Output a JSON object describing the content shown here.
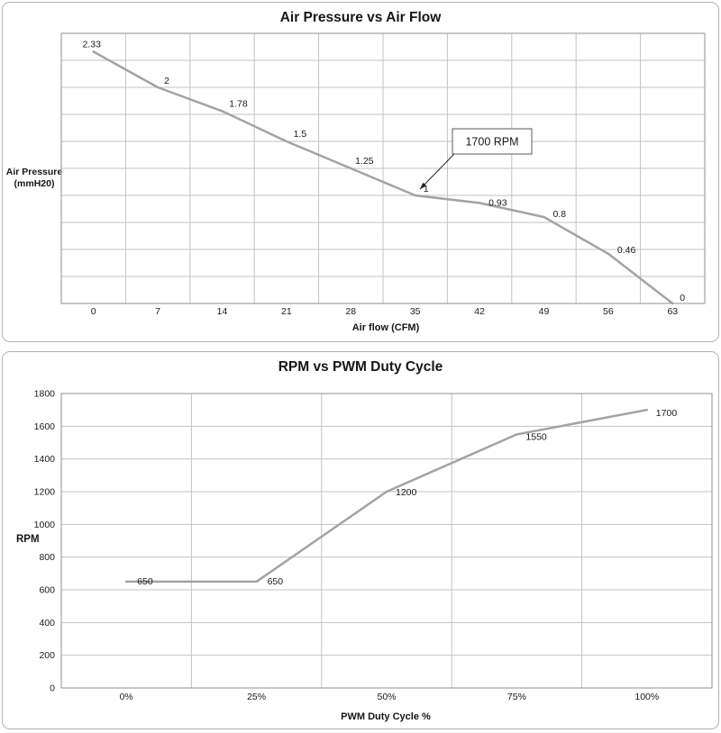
{
  "colors": {
    "line": "#a3a3a3",
    "grid": "#c3c3c3",
    "plot_border": "#8f8f8f",
    "text": "#1a1a1a",
    "annotation_border": "#595959",
    "annotation_fill": "#ffffff",
    "arrow": "#262626"
  },
  "chart_data": [
    {
      "type": "line",
      "title": "Air Pressure vs Air Flow",
      "xlabel": "Air flow (CFM)",
      "ylabel_lines": [
        "Air Pressure",
        "(mmH20)"
      ],
      "categories": [
        "0",
        "7",
        "14",
        "21",
        "28",
        "35",
        "42",
        "49",
        "56",
        "63"
      ],
      "values": [
        2.33,
        2,
        1.78,
        1.5,
        1.25,
        1,
        0.93,
        0.8,
        0.46,
        0
      ],
      "point_labels": [
        "2.33",
        "2",
        "1.78",
        "1.5",
        "1.25",
        "1",
        "0.93",
        "0.8",
        "0.46",
        "0"
      ],
      "label_hints": [
        [
          -2,
          -5,
          "middle"
        ],
        [
          10,
          -4,
          "middle"
        ],
        [
          18,
          -5,
          "middle"
        ],
        [
          15,
          -5,
          "middle"
        ],
        [
          15,
          -5,
          "middle"
        ],
        [
          12,
          -4,
          "middle"
        ],
        [
          10,
          3,
          "start"
        ],
        [
          10,
          0,
          "start"
        ],
        [
          10,
          -1,
          "start"
        ],
        [
          8,
          -3,
          "start"
        ]
      ],
      "ylim": [
        0,
        2.5
      ],
      "y_step": 0.25,
      "show_y_tick_labels": false,
      "grid": true,
      "legend": "none",
      "annotation": {
        "text": "1700 RPM",
        "target_category": "35",
        "target_value": 1,
        "target_index": 5
      }
    },
    {
      "type": "line",
      "title": "RPM vs PWM Duty Cycle",
      "xlabel": "PWM Duty Cycle %",
      "ylabel_lines": [
        "RPM"
      ],
      "categories": [
        "0%",
        "25%",
        "50%",
        "75%",
        "100%"
      ],
      "values": [
        650,
        650,
        1200,
        1550,
        1700
      ],
      "point_labels": [
        "650",
        "650",
        "1200",
        "1550",
        "1700"
      ],
      "label_hints": [
        [
          12,
          3,
          "start"
        ],
        [
          12,
          3,
          "start"
        ],
        [
          10,
          4,
          "start"
        ],
        [
          10,
          6,
          "start"
        ],
        [
          10,
          7,
          "start"
        ]
      ],
      "ylim": [
        0,
        1800
      ],
      "y_step": 200,
      "show_y_tick_labels": true,
      "grid": true,
      "legend": "none"
    }
  ]
}
